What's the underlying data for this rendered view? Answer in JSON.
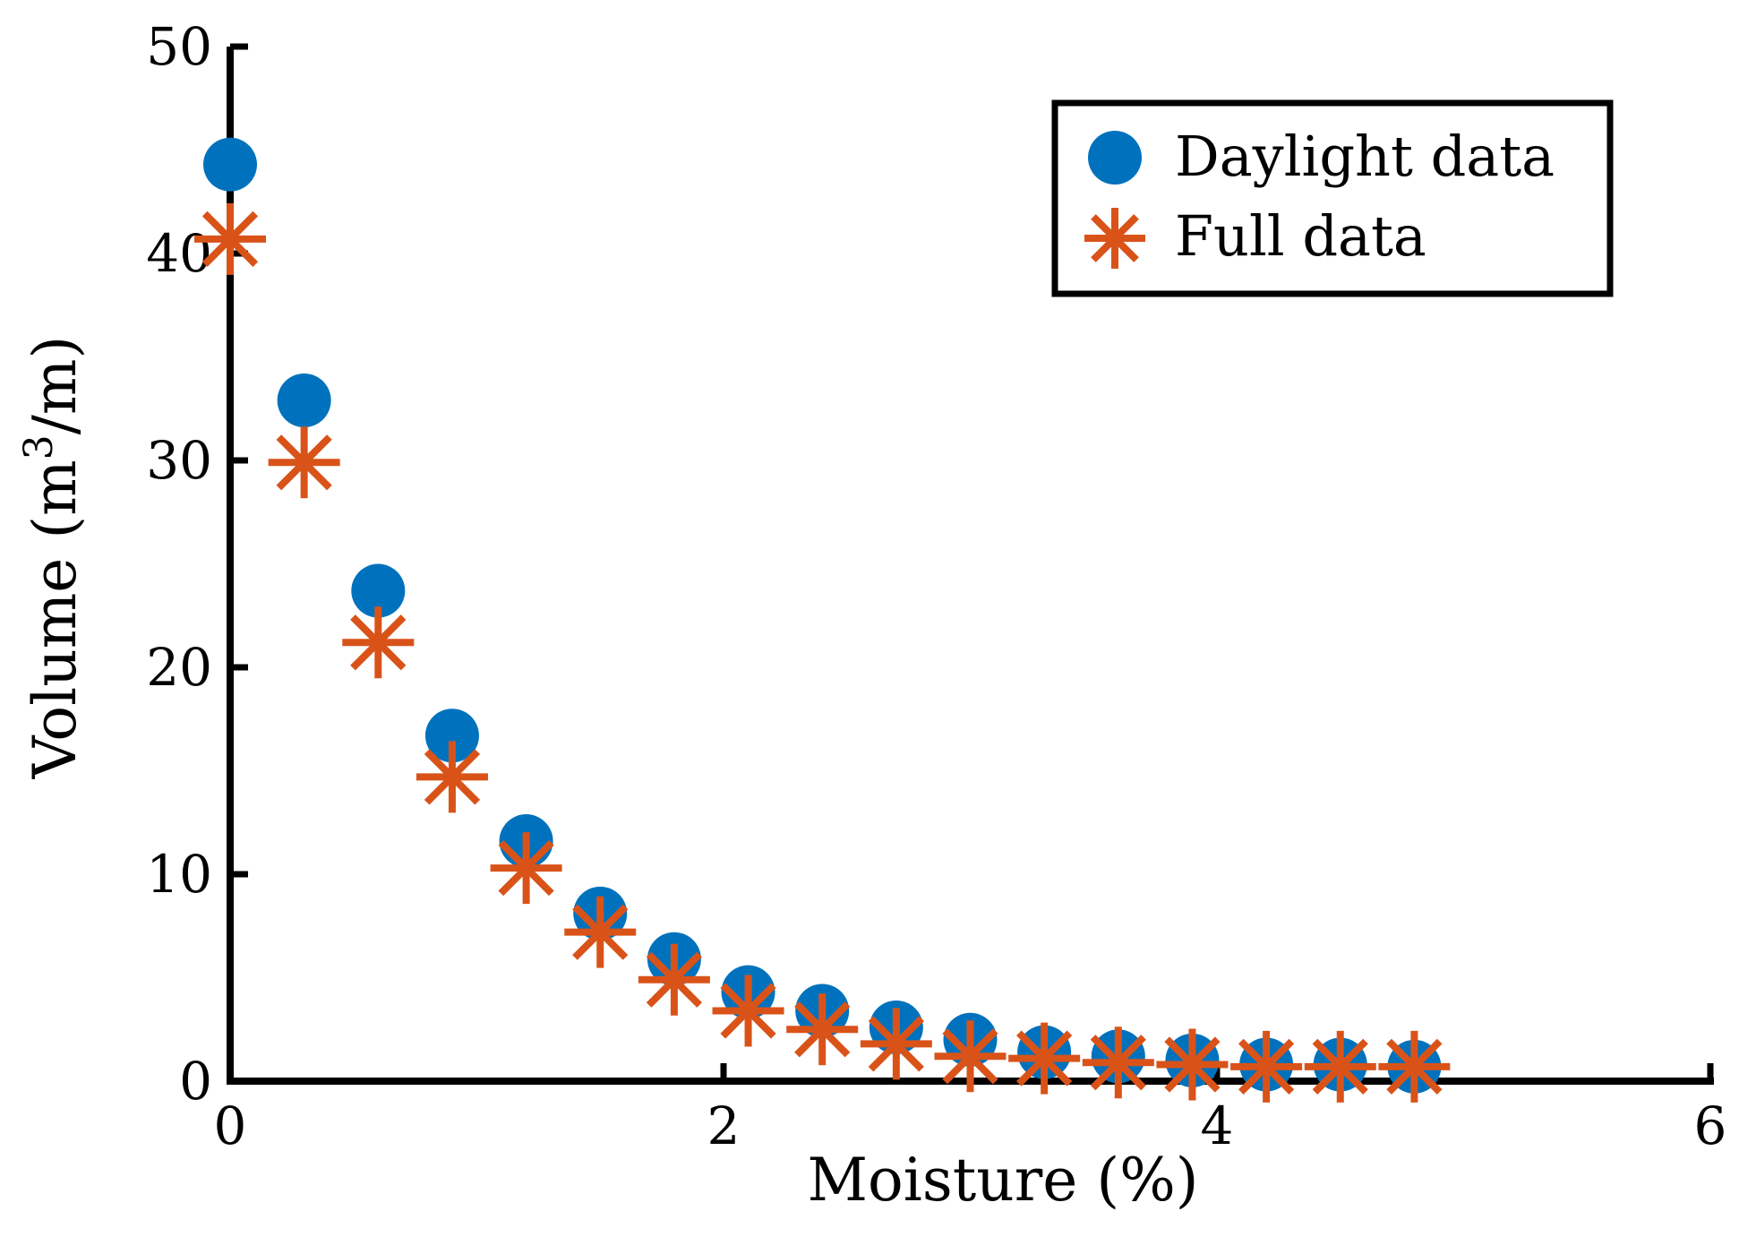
{
  "chart_data": {
    "type": "scatter",
    "title": "",
    "xlabel": "Moisture (%)",
    "ylabel": "Volume (m",
    "ylabel_sup": "3",
    "ylabel_end": "/m)",
    "xlim": [
      0,
      6
    ],
    "ylim": [
      0,
      50
    ],
    "xticks": [
      0,
      2,
      4,
      6
    ],
    "yticks": [
      0,
      10,
      20,
      30,
      40,
      50
    ],
    "xtick_labels": [
      "0",
      "2",
      "4",
      "6"
    ],
    "ytick_labels": [
      "0",
      "10",
      "20",
      "30",
      "40",
      "50"
    ],
    "grid": false,
    "legend_position": "top-right",
    "series": [
      {
        "name": "Daylight data",
        "marker": "circle",
        "color": "#0072BD",
        "x": [
          0,
          0.3,
          0.6,
          0.9,
          1.2,
          1.5,
          1.8,
          2.1,
          2.4,
          2.7,
          3.0,
          3.3,
          3.6,
          3.9,
          4.2,
          4.5,
          4.8
        ],
        "y": [
          44.3,
          32.9,
          23.7,
          16.7,
          11.6,
          8.1,
          5.9,
          4.3,
          3.4,
          2.6,
          2.0,
          1.4,
          1.2,
          1.0,
          0.8,
          0.8,
          0.7
        ]
      },
      {
        "name": "Full data",
        "marker": "asterisk",
        "color": "#D95319",
        "x": [
          0,
          0.3,
          0.6,
          0.9,
          1.2,
          1.5,
          1.8,
          2.1,
          2.4,
          2.7,
          3.0,
          3.3,
          3.6,
          3.9,
          4.2,
          4.5,
          4.8
        ],
        "y": [
          40.7,
          29.9,
          21.2,
          14.7,
          10.3,
          7.2,
          4.9,
          3.4,
          2.5,
          1.8,
          1.2,
          1.1,
          0.9,
          0.8,
          0.7,
          0.7,
          0.7
        ]
      }
    ]
  }
}
